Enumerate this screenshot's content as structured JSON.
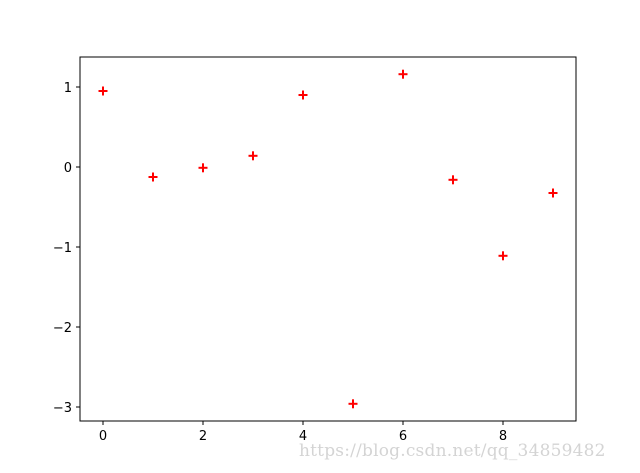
{
  "chart_data": {
    "type": "scatter",
    "title": "",
    "xlabel": "",
    "ylabel": "",
    "x": [
      0,
      1,
      2,
      3,
      4,
      5,
      6,
      7,
      8,
      9
    ],
    "y": [
      0.95,
      -0.125,
      -0.01,
      0.14,
      0.9,
      -2.96,
      1.16,
      -0.16,
      -1.11,
      -0.325
    ],
    "marker": "+",
    "color": "#ff0000",
    "xlim": [
      -0.46,
      9.46
    ],
    "ylim": [
      -3.175,
      1.375
    ],
    "xticks": [
      0,
      2,
      4,
      6,
      8
    ],
    "yticks": [
      1,
      0,
      -1,
      -2,
      -3
    ],
    "xtick_labels": [
      "0",
      "2",
      "4",
      "6",
      "8"
    ],
    "ytick_labels": [
      "1",
      "0",
      "−1",
      "−2",
      "−3"
    ],
    "grid": false
  },
  "watermark": "https://blog.csdn.net/qq_34859482"
}
